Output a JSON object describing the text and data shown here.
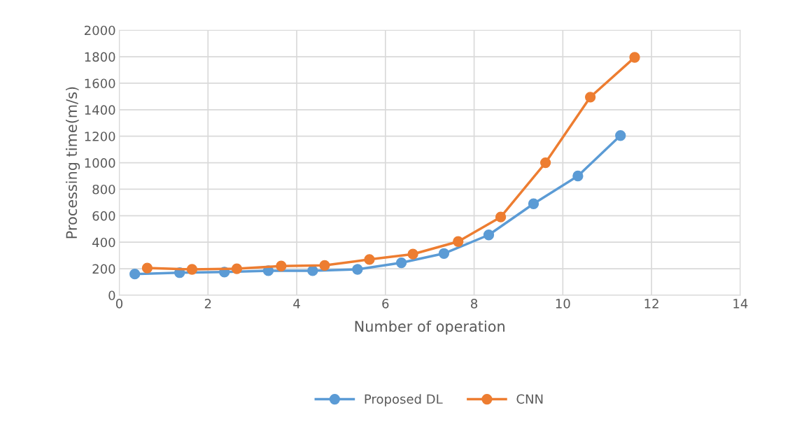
{
  "chart_data": {
    "type": "line",
    "xlabel": "Number of operation",
    "ylabel": "Processing time(m/s)",
    "xlim": [
      0,
      14
    ],
    "xticks": [
      0,
      2,
      4,
      6,
      8,
      10,
      12,
      14
    ],
    "ylim": [
      0,
      2000
    ],
    "yticks": [
      0,
      200,
      400,
      600,
      800,
      1000,
      1200,
      1400,
      1600,
      1800,
      2000
    ],
    "grid": true,
    "legend": "bottom",
    "marker": "circle",
    "line_style": "solid",
    "series": [
      {
        "name": "Proposed DL",
        "color": "#5b9bd5",
        "x": [
          0.35,
          1.36,
          2.37,
          3.36,
          4.36,
          5.37,
          6.36,
          7.32,
          8.33,
          9.34,
          10.34,
          11.3
        ],
        "values": [
          160,
          170,
          175,
          185,
          185,
          195,
          245,
          315,
          455,
          690,
          900,
          1205
        ]
      },
      {
        "name": "CNN",
        "color": "#ed7d31",
        "x": [
          0.63,
          1.64,
          2.65,
          3.65,
          4.63,
          5.64,
          6.62,
          7.64,
          8.6,
          9.61,
          10.62,
          11.62
        ],
        "values": [
          205,
          195,
          200,
          220,
          225,
          270,
          310,
          405,
          590,
          1000,
          1495,
          1795
        ]
      }
    ]
  }
}
